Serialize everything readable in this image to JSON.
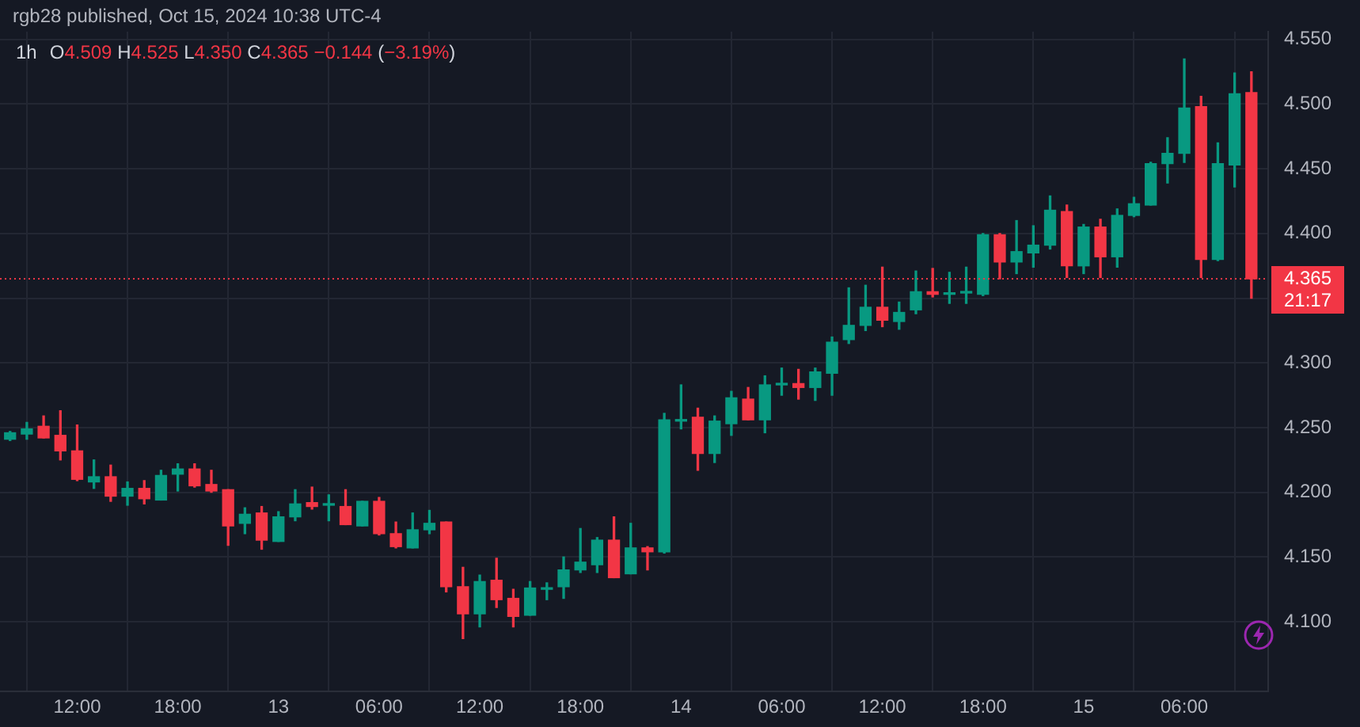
{
  "chart_data": {
    "type": "candlestick",
    "title": "1h",
    "subtitle": "O4.509 H4.525 L4.350 C4.365 −0.144 (−3.19%)",
    "annotations": [
      "rgb28 published, Oct 15, 2024 10:38 UTC-4",
      "21:17"
    ],
    "x": [
      "2024-10-12T08:00",
      "2024-10-12T09:00",
      "2024-10-12T10:00",
      "2024-10-12T11:00",
      "2024-10-12T12:00",
      "2024-10-12T13:00",
      "2024-10-12T14:00",
      "2024-10-12T15:00",
      "2024-10-12T16:00",
      "2024-10-12T17:00",
      "2024-10-12T18:00",
      "2024-10-12T19:00",
      "2024-10-12T20:00",
      "2024-10-12T21:00",
      "2024-10-12T22:00",
      "2024-10-12T23:00",
      "2024-10-13T00:00",
      "2024-10-13T01:00",
      "2024-10-13T02:00",
      "2024-10-13T03:00",
      "2024-10-13T04:00",
      "2024-10-13T05:00",
      "2024-10-13T06:00",
      "2024-10-13T07:00",
      "2024-10-13T08:00",
      "2024-10-13T09:00",
      "2024-10-13T10:00",
      "2024-10-13T11:00",
      "2024-10-13T12:00",
      "2024-10-13T13:00",
      "2024-10-13T14:00",
      "2024-10-13T15:00",
      "2024-10-13T16:00",
      "2024-10-13T17:00",
      "2024-10-13T18:00",
      "2024-10-13T19:00",
      "2024-10-13T20:00",
      "2024-10-13T21:00",
      "2024-10-13T22:00",
      "2024-10-13T23:00",
      "2024-10-14T00:00",
      "2024-10-14T01:00",
      "2024-10-14T02:00",
      "2024-10-14T03:00",
      "2024-10-14T04:00",
      "2024-10-14T05:00",
      "2024-10-14T06:00",
      "2024-10-14T07:00",
      "2024-10-14T08:00",
      "2024-10-14T09:00",
      "2024-10-14T10:00",
      "2024-10-14T11:00",
      "2024-10-14T12:00",
      "2024-10-14T13:00",
      "2024-10-14T14:00",
      "2024-10-14T15:00",
      "2024-10-14T16:00",
      "2024-10-14T17:00",
      "2024-10-14T18:00",
      "2024-10-14T19:00",
      "2024-10-14T20:00",
      "2024-10-14T21:00",
      "2024-10-14T22:00",
      "2024-10-14T23:00",
      "2024-10-15T00:00",
      "2024-10-15T01:00",
      "2024-10-15T02:00",
      "2024-10-15T03:00",
      "2024-10-15T04:00",
      "2024-10-15T05:00",
      "2024-10-15T06:00",
      "2024-10-15T07:00",
      "2024-10-15T08:00",
      "2024-10-15T09:00",
      "2024-10-15T10:00"
    ],
    "ohlc": [
      [
        4.241,
        4.247,
        4.24,
        4.246
      ],
      [
        4.245,
        4.254,
        4.241,
        4.249
      ],
      [
        4.251,
        4.259,
        4.242,
        4.242
      ],
      [
        4.244,
        4.263,
        4.225,
        4.232
      ],
      [
        4.232,
        4.252,
        4.209,
        4.21
      ],
      [
        4.208,
        4.225,
        4.203,
        4.212
      ],
      [
        4.212,
        4.221,
        4.193,
        4.197
      ],
      [
        4.197,
        4.208,
        4.19,
        4.203
      ],
      [
        4.203,
        4.209,
        4.191,
        4.195
      ],
      [
        4.194,
        4.217,
        4.194,
        4.213
      ],
      [
        4.214,
        4.222,
        4.201,
        4.218
      ],
      [
        4.218,
        4.222,
        4.204,
        4.205
      ],
      [
        4.206,
        4.217,
        4.2,
        4.201
      ],
      [
        4.202,
        4.202,
        4.159,
        4.174
      ],
      [
        4.176,
        4.188,
        4.168,
        4.183
      ],
      [
        4.184,
        4.189,
        4.156,
        4.163
      ],
      [
        4.162,
        4.185,
        4.162,
        4.181
      ],
      [
        4.181,
        4.202,
        4.178,
        4.191
      ],
      [
        4.192,
        4.204,
        4.187,
        4.189
      ],
      [
        4.19,
        4.198,
        4.178,
        4.191
      ],
      [
        4.189,
        4.202,
        4.175,
        4.175
      ],
      [
        4.174,
        4.193,
        4.174,
        4.193
      ],
      [
        4.193,
        4.196,
        4.167,
        4.168
      ],
      [
        4.168,
        4.177,
        4.157,
        4.158
      ],
      [
        4.157,
        4.184,
        4.157,
        4.171
      ],
      [
        4.171,
        4.186,
        4.168,
        4.176
      ],
      [
        4.177,
        4.177,
        4.123,
        4.127
      ],
      [
        4.127,
        4.142,
        4.087,
        4.106
      ],
      [
        4.106,
        4.136,
        4.096,
        4.131
      ],
      [
        4.132,
        4.149,
        4.111,
        4.117
      ],
      [
        4.118,
        4.125,
        4.096,
        4.104
      ],
      [
        4.105,
        4.131,
        4.105,
        4.126
      ],
      [
        4.125,
        4.13,
        4.117,
        4.126
      ],
      [
        4.127,
        4.15,
        4.118,
        4.14
      ],
      [
        4.14,
        4.172,
        4.138,
        4.146
      ],
      [
        4.144,
        4.165,
        4.138,
        4.163
      ],
      [
        4.163,
        4.181,
        4.134,
        4.134
      ],
      [
        4.137,
        4.176,
        4.137,
        4.157
      ],
      [
        4.157,
        4.158,
        4.14,
        4.154
      ],
      [
        4.154,
        4.261,
        4.153,
        4.256
      ],
      [
        4.255,
        4.283,
        4.249,
        4.256
      ],
      [
        4.258,
        4.265,
        4.217,
        4.23
      ],
      [
        4.23,
        4.259,
        4.223,
        4.255
      ],
      [
        4.253,
        4.278,
        4.244,
        4.273
      ],
      [
        4.272,
        4.281,
        4.256,
        4.256
      ],
      [
        4.256,
        4.29,
        4.246,
        4.283
      ],
      [
        4.283,
        4.296,
        4.275,
        4.284
      ],
      [
        4.284,
        4.295,
        4.272,
        4.281
      ],
      [
        4.281,
        4.296,
        4.271,
        4.293
      ],
      [
        4.292,
        4.32,
        4.275,
        4.316
      ],
      [
        4.318,
        4.358,
        4.315,
        4.329
      ],
      [
        4.329,
        4.36,
        4.325,
        4.343
      ],
      [
        4.343,
        4.374,
        4.328,
        4.333
      ],
      [
        4.332,
        4.347,
        4.326,
        4.339
      ],
      [
        4.341,
        4.371,
        4.338,
        4.355
      ],
      [
        4.355,
        4.373,
        4.351,
        4.353
      ],
      [
        4.353,
        4.37,
        4.346,
        4.354
      ],
      [
        4.354,
        4.374,
        4.346,
        4.355
      ],
      [
        4.353,
        4.4,
        4.352,
        4.399
      ],
      [
        4.399,
        4.4,
        4.365,
        4.378
      ],
      [
        4.378,
        4.41,
        4.369,
        4.386
      ],
      [
        4.385,
        4.406,
        4.374,
        4.391
      ],
      [
        4.391,
        4.429,
        4.388,
        4.418
      ],
      [
        4.417,
        4.422,
        4.366,
        4.375
      ],
      [
        4.375,
        4.407,
        4.369,
        4.405
      ],
      [
        4.405,
        4.411,
        4.366,
        4.382
      ],
      [
        4.382,
        4.419,
        4.374,
        4.414
      ],
      [
        4.414,
        4.428,
        4.413,
        4.423
      ],
      [
        4.422,
        4.455,
        4.422,
        4.454
      ],
      [
        4.454,
        4.474,
        4.439,
        4.462
      ],
      [
        4.462,
        4.535,
        4.455,
        4.497
      ],
      [
        4.498,
        4.506,
        4.366,
        4.38
      ],
      [
        4.38,
        4.47,
        4.379,
        4.454
      ],
      [
        4.453,
        4.524,
        4.436,
        4.508
      ],
      [
        4.509,
        4.525,
        4.35,
        4.365
      ]
    ],
    "colors": [
      "#089981",
      "#089981",
      "#f23645",
      "#f23645",
      "#f23645",
      "#089981",
      "#f23645",
      "#089981",
      "#f23645",
      "#089981",
      "#089981",
      "#f23645",
      "#f23645",
      "#f23645",
      "#089981",
      "#f23645",
      "#089981",
      "#089981",
      "#f23645",
      "#089981",
      "#f23645",
      "#089981",
      "#f23645",
      "#f23645",
      "#089981",
      "#089981",
      "#f23645",
      "#f23645",
      "#089981",
      "#f23645",
      "#f23645",
      "#089981",
      "#089981",
      "#089981",
      "#089981",
      "#089981",
      "#f23645",
      "#089981",
      "#f23645",
      "#089981",
      "#089981",
      "#f23645",
      "#089981",
      "#089981",
      "#f23645",
      "#089981",
      "#089981",
      "#f23645",
      "#089981",
      "#089981",
      "#089981",
      "#089981",
      "#f23645",
      "#089981",
      "#089981",
      "#f23645",
      "#089981",
      "#089981",
      "#089981",
      "#f23645",
      "#089981",
      "#089981",
      "#089981",
      "#f23645",
      "#089981",
      "#f23645",
      "#089981",
      "#089981",
      "#089981",
      "#089981",
      "#089981",
      "#f23645",
      "#089981",
      "#089981",
      "#f23645"
    ],
    "xlim": [
      "2024-10-12T07:24",
      "2024-10-15T11:00"
    ],
    "xticks": [
      {
        "value": "2024-10-12T12:00",
        "label": "12:00"
      },
      {
        "value": "2024-10-12T18:00",
        "label": "18:00"
      },
      {
        "value": "2024-10-13",
        "label": "13"
      },
      {
        "value": "2024-10-13T06:00",
        "label": "06:00"
      },
      {
        "value": "2024-10-13T12:00",
        "label": "12:00"
      },
      {
        "value": "2024-10-13T18:00",
        "label": "18:00"
      },
      {
        "value": "2024-10-14",
        "label": "14"
      },
      {
        "value": "2024-10-14T06:00",
        "label": "06:00"
      },
      {
        "value": "2024-10-14T12:00",
        "label": "12:00"
      },
      {
        "value": "2024-10-14T18:00",
        "label": "18:00"
      },
      {
        "value": "2024-10-15",
        "label": "15"
      },
      {
        "value": "2024-10-15T06:00",
        "label": "06:00"
      }
    ],
    "ylim": [
      4.046,
      4.556
    ],
    "yticks": [
      {
        "value": 4.1,
        "label": "4.100"
      },
      {
        "value": 4.15,
        "label": "4.150"
      },
      {
        "value": 4.2,
        "label": "4.200"
      },
      {
        "value": 4.25,
        "label": "4.250"
      },
      {
        "value": 4.3,
        "label": "4.300"
      },
      {
        "value": 4.35,
        "label": null
      },
      {
        "value": 4.4,
        "label": "4.400"
      },
      {
        "value": 4.45,
        "label": "4.450"
      },
      {
        "value": 4.5,
        "label": "4.500"
      },
      {
        "value": 4.55,
        "label": "4.550"
      }
    ],
    "ref_lines": [
      {
        "axis": "y",
        "value": 4.365,
        "label": "4.365",
        "color": "#f23645",
        "line_style": "dotted"
      }
    ],
    "grid": true,
    "legend": false
  }
}
